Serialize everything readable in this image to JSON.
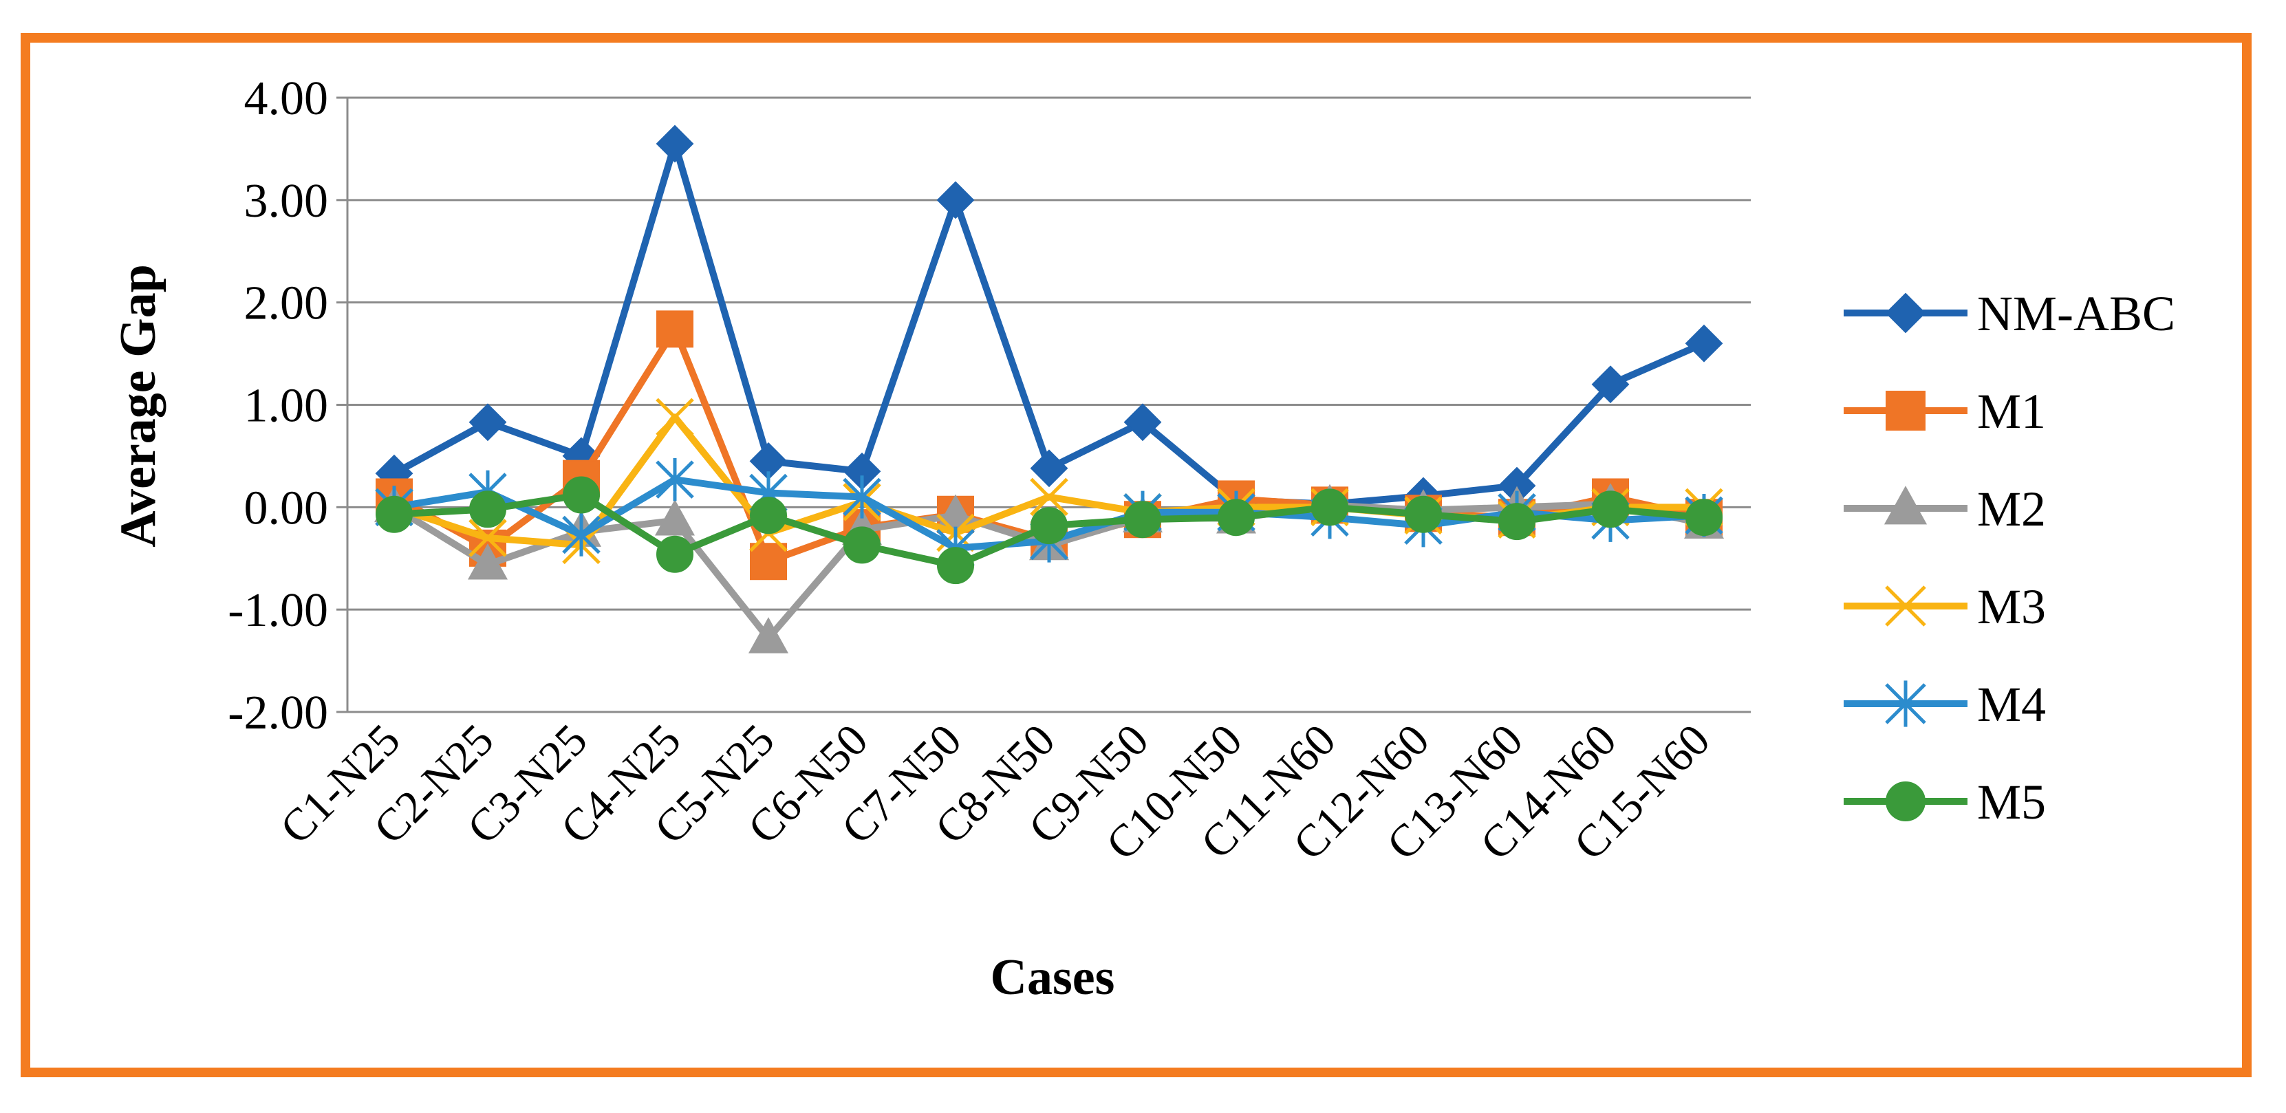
{
  "chart_data": {
    "type": "line",
    "title": "",
    "xlabel": "Cases",
    "ylabel": "Average Gap",
    "ylim": [
      -2,
      4
    ],
    "yticks": [
      -2,
      -1,
      0,
      1,
      2,
      3,
      4
    ],
    "ytick_labels": [
      "-2.00",
      "-1.00",
      "0.00",
      "1.00",
      "2.00",
      "3.00",
      "4.00"
    ],
    "grid": true,
    "legend": "right",
    "categories": [
      "C1-N25",
      "C2-N25",
      "C3-N25",
      "C4-N25",
      "C5-N25",
      "C6-N50",
      "C7-N50",
      "C8-N50",
      "C9-N50",
      "C10-N50",
      "C11-N60",
      "C12-N60",
      "C13-N60",
      "C14-N60",
      "C15-N60"
    ],
    "series": [
      {
        "name": "NM-ABC",
        "color": "#1f63b0",
        "marker": "diamond",
        "values": [
          0.33,
          0.83,
          0.5,
          3.55,
          0.45,
          0.35,
          3.0,
          0.38,
          0.83,
          0.07,
          0.03,
          0.11,
          0.21,
          1.2,
          1.6
        ]
      },
      {
        "name": "M1",
        "color": "#ef7526",
        "marker": "square",
        "values": [
          0.1,
          -0.4,
          0.28,
          1.74,
          -0.53,
          -0.2,
          -0.07,
          -0.32,
          -0.12,
          0.08,
          0.02,
          -0.06,
          -0.1,
          0.1,
          -0.1
        ]
      },
      {
        "name": "M2",
        "color": "#9b9b9b",
        "marker": "triangle",
        "values": [
          0.0,
          -0.56,
          -0.24,
          -0.13,
          -1.28,
          -0.22,
          -0.08,
          -0.37,
          -0.1,
          -0.11,
          0.02,
          -0.03,
          0.0,
          0.03,
          -0.16
        ]
      },
      {
        "name": "M3",
        "color": "#f9b413",
        "marker": "x",
        "values": [
          0.0,
          -0.3,
          -0.37,
          0.88,
          -0.25,
          0.05,
          -0.25,
          0.1,
          -0.05,
          0.0,
          0.0,
          -0.08,
          -0.12,
          0.0,
          0.0
        ]
      },
      {
        "name": "M4",
        "color": "#2c8ccd",
        "marker": "asterisk",
        "values": [
          0.0,
          0.15,
          -0.27,
          0.27,
          0.14,
          0.1,
          -0.4,
          -0.33,
          -0.05,
          -0.05,
          -0.1,
          -0.18,
          -0.05,
          -0.13,
          -0.08
        ]
      },
      {
        "name": "M5",
        "color": "#3a9a3a",
        "marker": "circle",
        "values": [
          -0.07,
          -0.02,
          0.12,
          -0.46,
          -0.08,
          -0.37,
          -0.57,
          -0.18,
          -0.12,
          -0.1,
          0.0,
          -0.07,
          -0.14,
          -0.02,
          -0.1
        ]
      }
    ]
  }
}
